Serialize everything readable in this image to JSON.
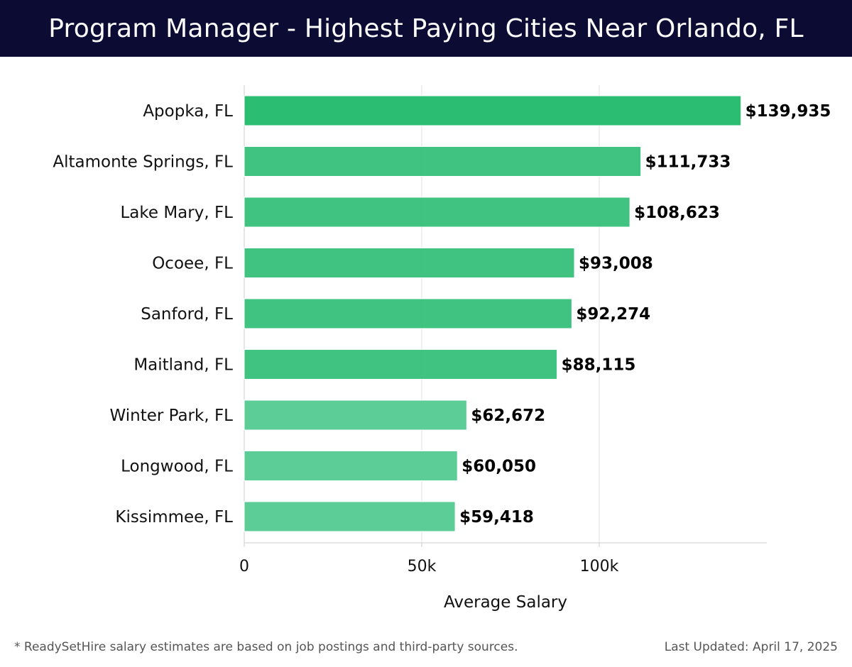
{
  "header": {
    "title": "Program Manager - Highest Paying Cities Near Orlando, FL"
  },
  "footer": {
    "note": "* ReadySetHire salary estimates are based on job postings and third-party sources.",
    "updated": "Last Updated: April 17, 2025"
  },
  "colors": {
    "header_bg": "#0b0b33",
    "bar_high": "#2bbd72",
    "bar_low": "#5ccd97",
    "grid": "#e2e2e2",
    "axis": "#cccccc",
    "text": "#111111"
  },
  "chart_data": {
    "type": "bar",
    "orientation": "horizontal",
    "title": "Program Manager - Highest Paying Cities Near Orlando, FL",
    "xlabel": "Average Salary",
    "ylabel": "",
    "xlim": [
      0,
      147000
    ],
    "xticks": [
      0,
      50000,
      100000
    ],
    "xtick_labels": [
      "0",
      "50k",
      "100k"
    ],
    "grid": true,
    "categories": [
      "Apopka, FL",
      "Altamonte Springs, FL",
      "Lake Mary, FL",
      "Ocoee, FL",
      "Sanford, FL",
      "Maitland, FL",
      "Winter Park, FL",
      "Longwood, FL",
      "Kissimmee, FL"
    ],
    "values": [
      139935,
      111733,
      108623,
      93008,
      92274,
      88115,
      62672,
      60050,
      59418
    ],
    "value_labels": [
      "$139,935",
      "$111,733",
      "$108,623",
      "$93,008",
      "$92,274",
      "$88,115",
      "$62,672",
      "$60,050",
      "$59,418"
    ]
  }
}
